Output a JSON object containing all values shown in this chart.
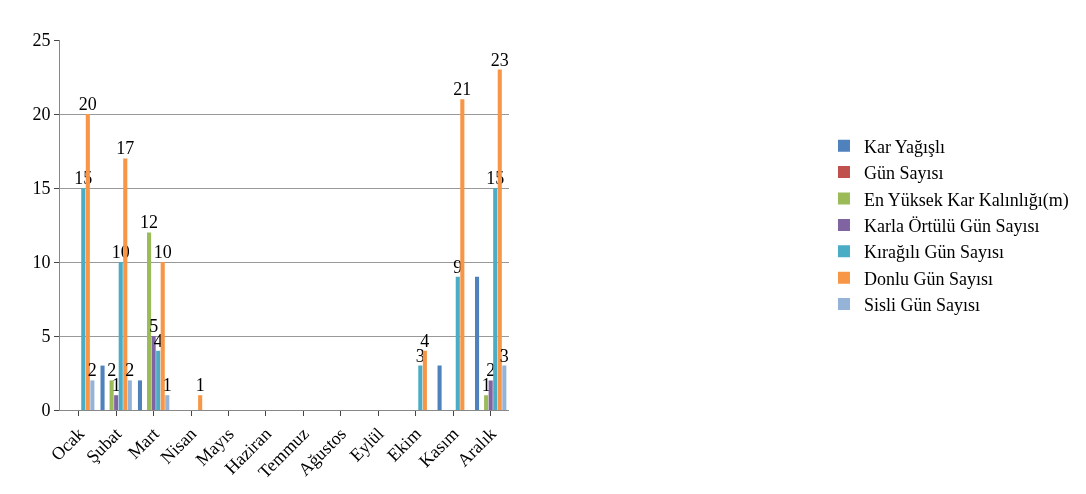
{
  "chart_data": {
    "type": "bar",
    "categories": [
      "Ocak",
      "Şubat",
      "Mart",
      "Nisan",
      "Mayıs",
      "Haziran",
      "Temmuz",
      "Ağustos",
      "Eylül",
      "Ekim",
      "Kasım",
      "Aralık"
    ],
    "series": [
      {
        "name": "Kar Yağışlı",
        "color": "#4f81bd",
        "values": [
          0,
          3,
          2,
          0,
          0,
          0,
          0,
          0,
          0,
          0,
          3,
          9
        ]
      },
      {
        "name": "Gün Sayısı",
        "color": "#c0504d",
        "values": [
          0,
          0,
          0,
          0,
          0,
          0,
          0,
          0,
          0,
          0,
          0,
          0
        ]
      },
      {
        "name": "En Yüksek Kar Kalınlığı(m)",
        "color": "#9bbb59",
        "values": [
          0,
          2,
          12,
          0,
          0,
          0,
          0,
          0,
          0,
          0,
          0,
          1
        ],
        "value_labels": [
          null,
          "2",
          "12",
          null,
          null,
          null,
          null,
          null,
          null,
          null,
          null,
          "1"
        ]
      },
      {
        "name": "Karla Örtülü Gün Sayısı",
        "color": "#8064a2",
        "values": [
          0,
          1,
          5,
          0,
          0,
          0,
          0,
          0,
          0,
          0,
          0,
          2
        ],
        "value_labels": [
          null,
          "1",
          "5",
          null,
          null,
          null,
          null,
          null,
          null,
          null,
          null,
          "2"
        ]
      },
      {
        "name": "Kırağılı Gün Sayısı",
        "color": "#4bacc6",
        "values": [
          15,
          10,
          4,
          0,
          0,
          0,
          0,
          0,
          0,
          3,
          9,
          15
        ],
        "value_labels": [
          "15",
          "10",
          "4",
          null,
          null,
          null,
          null,
          null,
          null,
          "3",
          "9",
          "15"
        ]
      },
      {
        "name": "Donlu Gün Sayısı",
        "color": "#f79646",
        "values": [
          20,
          17,
          10,
          1,
          0,
          0,
          0,
          0,
          0,
          4,
          21,
          23
        ],
        "value_labels": [
          "20",
          "17",
          "10",
          "1",
          null,
          null,
          null,
          null,
          null,
          "4",
          "21",
          "23"
        ]
      },
      {
        "name": "Sisli Gün Sayısı",
        "color": "#95b3d7",
        "values": [
          2,
          2,
          1,
          0,
          0,
          0,
          0,
          0,
          0,
          0,
          0,
          3
        ],
        "value_labels": [
          "2",
          "2",
          "1",
          null,
          null,
          null,
          null,
          null,
          null,
          null,
          null,
          "3"
        ]
      }
    ],
    "ylim": [
      0,
      25
    ],
    "yticks": [
      0,
      5,
      10,
      15,
      20,
      25
    ],
    "grid": "y",
    "legend": "right"
  }
}
